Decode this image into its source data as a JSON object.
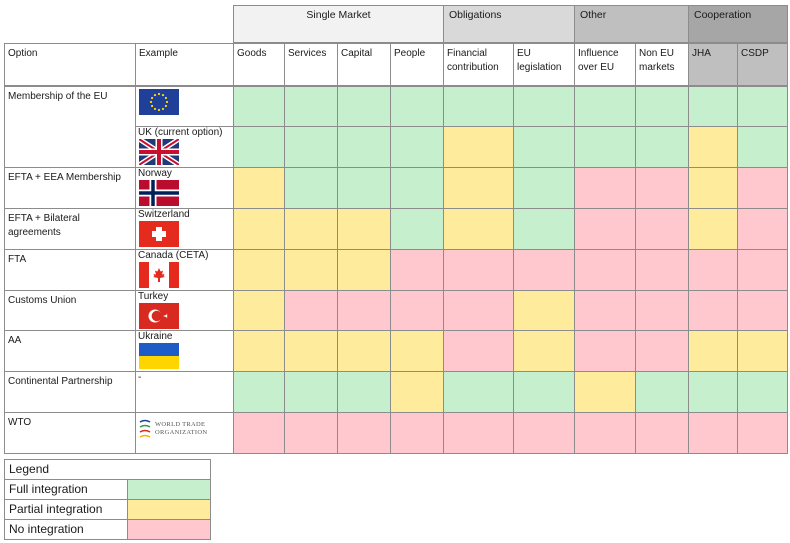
{
  "colors": {
    "full": "#c6efce",
    "partial": "#ffeb9c",
    "none": "#ffc7ce",
    "group_light": "#f2f2f2",
    "group_mid": "#d9d9d9",
    "group_dark": "#bfbfbf",
    "group_darker": "#a6a6a6"
  },
  "groups": [
    {
      "label": "Single Market",
      "shade": "group_light"
    },
    {
      "label": "Obligations",
      "shade": "group_mid"
    },
    {
      "label": "Other",
      "shade": "group_dark"
    },
    {
      "label": "Cooperation",
      "shade": "group_darker"
    }
  ],
  "headers": {
    "option": "Option",
    "example": "Example",
    "columns": [
      "Goods",
      "Services",
      "Capital",
      "People",
      "Financial contribution",
      "EU legislation",
      "Influence over EU",
      "Non EU markets",
      "JHA",
      "CSDP"
    ]
  },
  "options": [
    {
      "label": "Membership of the EU"
    },
    {
      "label": "EFTA + EEA Membership"
    },
    {
      "label": "EFTA + Bilateral agreements"
    },
    {
      "label": "FTA"
    },
    {
      "label": "Customs Union"
    },
    {
      "label": "AA"
    },
    {
      "label": "Continental Partnership"
    },
    {
      "label": "WTO"
    }
  ],
  "rows": [
    {
      "example": "",
      "flag": "eu",
      "cells": [
        "F",
        "F",
        "F",
        "F",
        "F",
        "F",
        "F",
        "F",
        "F",
        "F"
      ]
    },
    {
      "example": "UK (current option)",
      "flag": "uk",
      "cells": [
        "F",
        "F",
        "F",
        "F",
        "P",
        "F",
        "F",
        "F",
        "P",
        "F"
      ]
    },
    {
      "example": "Norway",
      "flag": "norway",
      "cells": [
        "P",
        "F",
        "F",
        "F",
        "P",
        "F",
        "N",
        "N",
        "P",
        "N"
      ]
    },
    {
      "example": "Switzerland",
      "flag": "switzerland",
      "cells": [
        "P",
        "P",
        "P",
        "F",
        "P",
        "F",
        "N",
        "N",
        "P",
        "N"
      ]
    },
    {
      "example": "Canada (CETA)",
      "flag": "canada",
      "cells": [
        "P",
        "P",
        "P",
        "N",
        "N",
        "N",
        "N",
        "N",
        "N",
        "N"
      ]
    },
    {
      "example": "Turkey",
      "flag": "turkey",
      "cells": [
        "P",
        "N",
        "N",
        "N",
        "N",
        "P",
        "N",
        "N",
        "N",
        "N"
      ]
    },
    {
      "example": "Ukraine",
      "flag": "ukraine",
      "cells": [
        "P",
        "P",
        "P",
        "P",
        "N",
        "P",
        "N",
        "N",
        "P",
        "P"
      ]
    },
    {
      "example": "-",
      "flag": "",
      "cells": [
        "F",
        "F",
        "F",
        "P",
        "F",
        "F",
        "P",
        "F",
        "F",
        "F"
      ]
    },
    {
      "example": "",
      "flag": "wto",
      "cells": [
        "N",
        "N",
        "N",
        "N",
        "N",
        "N",
        "N",
        "N",
        "N",
        "N"
      ]
    }
  ],
  "wto_logo": {
    "line1": "WORLD TRADE",
    "line2": "ORGANIZATION"
  },
  "legend": {
    "title": "Legend",
    "items": [
      {
        "label": "Full integration",
        "level": "F"
      },
      {
        "label": "Partial integration",
        "level": "P"
      },
      {
        "label": "No integration",
        "level": "N"
      }
    ]
  }
}
